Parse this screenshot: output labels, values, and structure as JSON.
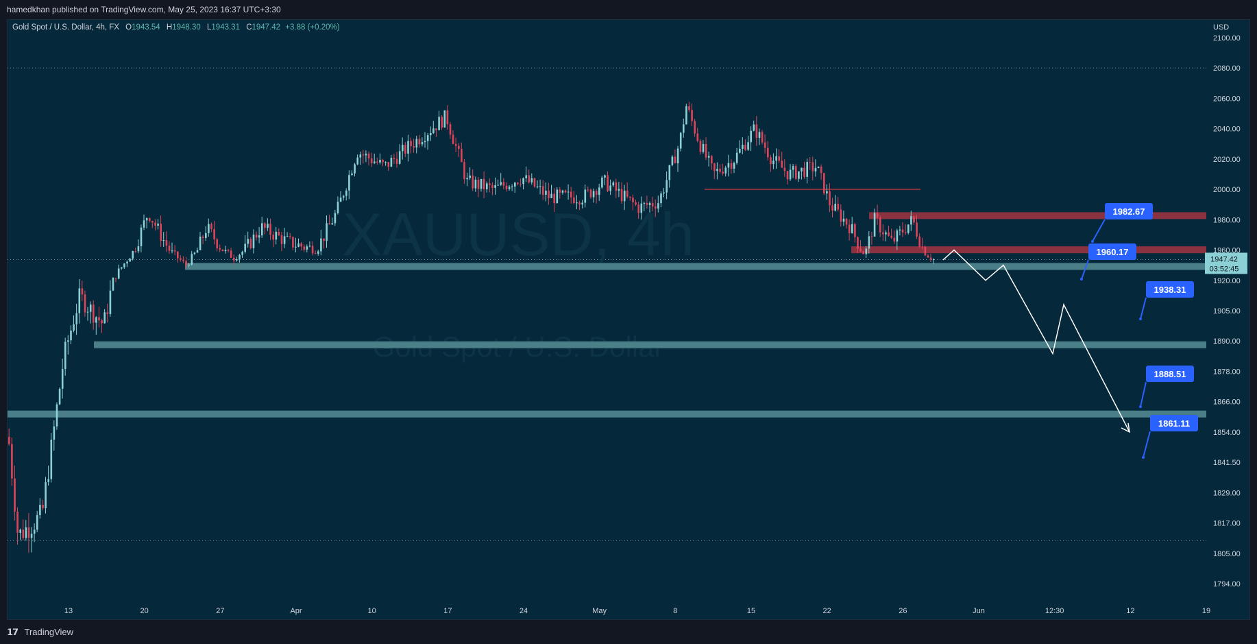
{
  "header": {
    "published_by": "hamedkhan published on TradingView.com, May 25, 2023 16:37 UTC+3:30"
  },
  "legend": {
    "symbol": "Gold Spot / U.S. Dollar, 4h, FX",
    "open_label": "O",
    "open": "1943.54",
    "high_label": "H",
    "high": "1948.30",
    "low_label": "L",
    "low": "1943.31",
    "close_label": "C",
    "close": "1947.42",
    "change": "+3.88 (+0.20%)"
  },
  "watermark": {
    "ticker": "XAUUSD, 4h",
    "name": "Gold Spot / U.S. Dollar"
  },
  "footer": {
    "brand": "TradingView"
  },
  "colors": {
    "background": "#05283a",
    "up": "#8ad0d4",
    "down": "#e0445a",
    "support_zone": "#4a7f88",
    "resistance_zone": "#8a3240",
    "label_bg": "#2962ff"
  },
  "chart_data": {
    "type": "candlestick",
    "currency": "USD",
    "y_ticks": [
      "2100.00",
      "2080.00",
      "2060.00",
      "2040.00",
      "2020.00",
      "2000.00",
      "1980.00",
      "1960.00",
      "1920.00",
      "1905.00",
      "1890.00",
      "1878.00",
      "1866.00",
      "1854.00",
      "1841.50",
      "1829.00",
      "1817.00",
      "1805.00",
      "1794.00"
    ],
    "x_ticks": [
      "13",
      "20",
      "27",
      "Apr",
      "10",
      "17",
      "24",
      "May",
      "8",
      "15",
      "22",
      "26",
      "Jun",
      "12:30",
      "12",
      "19"
    ],
    "last_price": "1947.42",
    "countdown": "03:52:45",
    "levels": [
      {
        "label": "1982.67",
        "kind": "resistance"
      },
      {
        "label": "1960.17",
        "kind": "resistance"
      },
      {
        "label": "1938.31",
        "kind": "support"
      },
      {
        "label": "1888.51",
        "kind": "support"
      },
      {
        "label": "1861.11",
        "kind": "support"
      }
    ],
    "horizontal_line": "2000.00",
    "projection_path": [
      1947,
      1960,
      1920,
      1940,
      1885,
      1908,
      1854
    ]
  }
}
